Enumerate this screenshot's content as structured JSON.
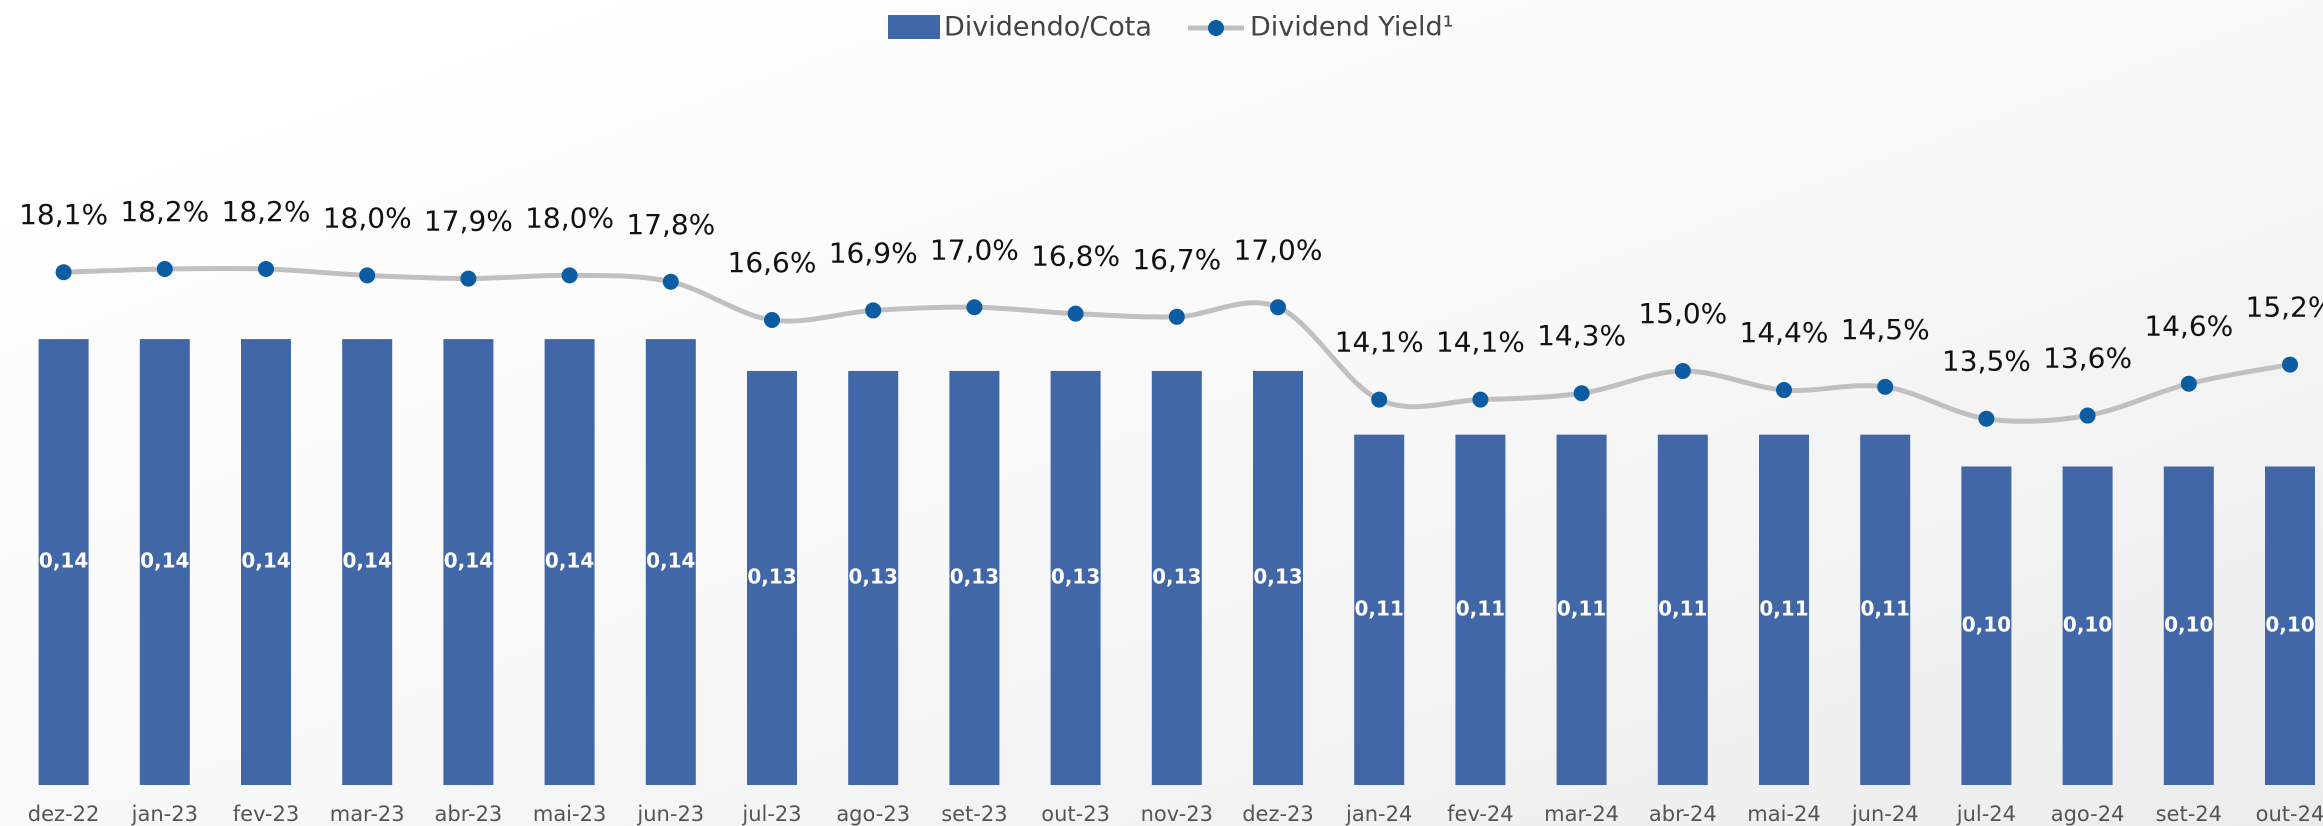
{
  "chart_data": {
    "type": "bar_line",
    "categories": [
      "dez-22",
      "jan-23",
      "fev-23",
      "mar-23",
      "abr-23",
      "mai-23",
      "jun-23",
      "jul-23",
      "ago-23",
      "set-23",
      "out-23",
      "nov-23",
      "dez-23",
      "jan-24",
      "fev-24",
      "mar-24",
      "abr-24",
      "mai-24",
      "jun-24",
      "jul-24",
      "ago-24",
      "set-24",
      "out-24"
    ],
    "series": [
      {
        "name": "Dividendo/Cota",
        "type": "bar",
        "color": "#4267a6",
        "values": [
          0.14,
          0.14,
          0.14,
          0.14,
          0.14,
          0.14,
          0.14,
          0.13,
          0.13,
          0.13,
          0.13,
          0.13,
          0.13,
          0.11,
          0.11,
          0.11,
          0.11,
          0.11,
          0.11,
          0.1,
          0.1,
          0.1,
          0.1
        ],
        "value_labels": [
          "0,14",
          "0,14",
          "0,14",
          "0,14",
          "0,14",
          "0,14",
          "0,14",
          "0,13",
          "0,13",
          "0,13",
          "0,13",
          "0,13",
          "0,13",
          "0,11",
          "0,11",
          "0,11",
          "0,11",
          "0,11",
          "0,11",
          "0,10",
          "0,10",
          "0,10",
          "0,10"
        ]
      },
      {
        "name": "Dividend Yield¹",
        "type": "line",
        "axis": "y2",
        "color": "#c0c0c0",
        "marker_color": "#0b5ca3",
        "values": [
          18.1,
          18.2,
          18.2,
          18.0,
          17.9,
          18.0,
          17.8,
          16.6,
          16.9,
          17.0,
          16.8,
          16.7,
          17.0,
          14.1,
          14.1,
          14.3,
          15.0,
          14.4,
          14.5,
          13.5,
          13.6,
          14.6,
          15.2
        ],
        "value_labels": [
          "18,1%",
          "18,2%",
          "18,2%",
          "18,0%",
          "17,9%",
          "18,0%",
          "17,8%",
          "16,6%",
          "16,9%",
          "17,0%",
          "16,8%",
          "16,7%",
          "17,0%",
          "14,1%",
          "14,1%",
          "14,3%",
          "15,0%",
          "14,4%",
          "14,5%",
          "13,5%",
          "13,6%",
          "14,6%",
          "15,2%"
        ]
      }
    ],
    "ylim": [
      0,
      0.2
    ],
    "y2lim": [
      2,
      22
    ],
    "legend": "top"
  }
}
